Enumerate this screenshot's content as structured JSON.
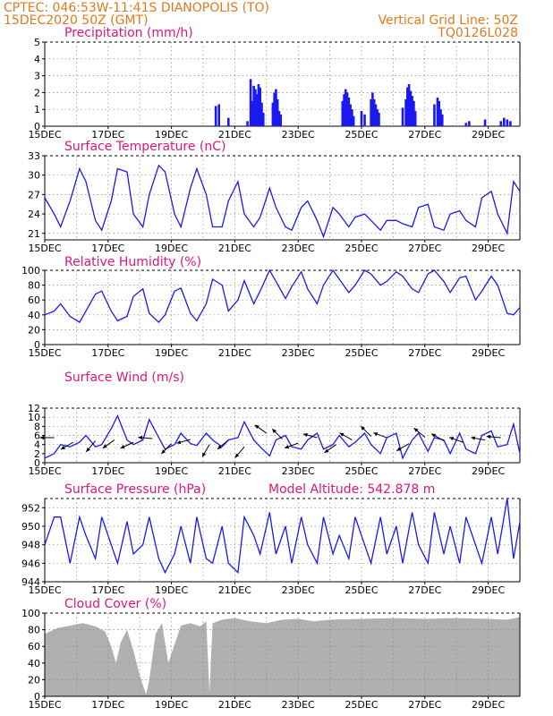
{
  "header": {
    "station": "CPTEC:   046:53W-11:41S   DIANOPOLIS (TO)",
    "run_time": "15DEC2020 50Z (GMT)",
    "grid_note": "Vertical Grid Line: 50Z",
    "code": "TQ0126L028"
  },
  "colors": {
    "series": "#1a1af0",
    "title": "#e0157d",
    "header": "#e07a1c",
    "cloud": "#b0b0b0"
  },
  "chart_data": [
    {
      "id": "precip",
      "type": "bar",
      "title": "Precipitation  (mm/h)",
      "x_domain": [
        15,
        30
      ],
      "ylim": [
        0,
        5
      ],
      "yticks": [
        0,
        1,
        2,
        3,
        4,
        5
      ],
      "xtick_labels": [
        "15DEC",
        "17DEC",
        "19DEC",
        "21DEC",
        "23DEC",
        "25DEC",
        "27DEC",
        "29DEC"
      ],
      "bars": [
        [
          20.4,
          1.2
        ],
        [
          20.5,
          1.3
        ],
        [
          20.8,
          0.5
        ],
        [
          21.4,
          0.3
        ],
        [
          21.5,
          2.8
        ],
        [
          21.55,
          1.5
        ],
        [
          21.6,
          2.4
        ],
        [
          21.65,
          2.2
        ],
        [
          21.7,
          1.9
        ],
        [
          21.75,
          2.5
        ],
        [
          21.8,
          2.3
        ],
        [
          21.85,
          1.4
        ],
        [
          21.9,
          0.8
        ],
        [
          22.2,
          1.4
        ],
        [
          22.25,
          2.0
        ],
        [
          22.3,
          2.2
        ],
        [
          22.35,
          1.6
        ],
        [
          22.4,
          0.9
        ],
        [
          22.45,
          0.7
        ],
        [
          24.4,
          1.5
        ],
        [
          24.45,
          1.9
        ],
        [
          24.5,
          2.2
        ],
        [
          24.55,
          2.0
        ],
        [
          24.6,
          1.7
        ],
        [
          24.65,
          1.3
        ],
        [
          24.7,
          1.0
        ],
        [
          24.75,
          0.6
        ],
        [
          25.0,
          0.9
        ],
        [
          25.1,
          0.7
        ],
        [
          25.3,
          1.6
        ],
        [
          25.35,
          2.0
        ],
        [
          25.4,
          1.6
        ],
        [
          25.45,
          1.3
        ],
        [
          25.5,
          1.0
        ],
        [
          25.55,
          0.8
        ],
        [
          26.3,
          1.1
        ],
        [
          26.4,
          1.6
        ],
        [
          26.45,
          2.3
        ],
        [
          26.5,
          2.5
        ],
        [
          26.55,
          2.1
        ],
        [
          26.6,
          1.8
        ],
        [
          26.65,
          1.5
        ],
        [
          26.7,
          0.9
        ],
        [
          27.3,
          1.3
        ],
        [
          27.4,
          1.7
        ],
        [
          27.45,
          1.5
        ],
        [
          27.5,
          1.0
        ],
        [
          27.55,
          0.7
        ],
        [
          28.3,
          0.2
        ],
        [
          28.4,
          0.3
        ],
        [
          28.9,
          0.4
        ],
        [
          29.4,
          0.3
        ],
        [
          29.5,
          0.5
        ],
        [
          29.6,
          0.4
        ],
        [
          29.7,
          0.3
        ]
      ]
    },
    {
      "id": "temp",
      "type": "line",
      "title": "Surface Temperature (nC)",
      "x_domain": [
        15,
        30
      ],
      "ylim": [
        20,
        33
      ],
      "yticks": [
        21,
        24,
        27,
        30,
        33
      ],
      "xtick_labels": [
        "15DEC",
        "17DEC",
        "19DEC",
        "21DEC",
        "23DEC",
        "25DEC",
        "27DEC",
        "29DEC"
      ],
      "x": [
        15.0,
        15.3,
        15.5,
        15.8,
        16.1,
        16.3,
        16.6,
        16.8,
        17.1,
        17.3,
        17.6,
        17.8,
        18.1,
        18.3,
        18.6,
        18.8,
        19.1,
        19.3,
        19.6,
        19.8,
        20.1,
        20.3,
        20.6,
        20.8,
        21.1,
        21.3,
        21.6,
        21.8,
        22.1,
        22.3,
        22.6,
        22.8,
        23.1,
        23.3,
        23.6,
        23.8,
        24.1,
        24.3,
        24.6,
        24.8,
        25.1,
        25.3,
        25.6,
        25.8,
        26.1,
        26.3,
        26.6,
        26.8,
        27.1,
        27.3,
        27.6,
        27.8,
        28.1,
        28.3,
        28.6,
        28.8,
        29.1,
        29.3,
        29.6,
        29.8,
        30.0
      ],
      "y": [
        26.5,
        24,
        22,
        26,
        31,
        29,
        23,
        21.5,
        26,
        31,
        30.5,
        24,
        22,
        27,
        31.5,
        30.5,
        24,
        22,
        28,
        31,
        27,
        22,
        22,
        26,
        29,
        24,
        22,
        23.5,
        28,
        25,
        22,
        21.5,
        25,
        26,
        23,
        20.5,
        25,
        24,
        22,
        23.5,
        24,
        23,
        21.5,
        23,
        23,
        22.5,
        22,
        25,
        25.5,
        22,
        21.5,
        24,
        24.5,
        23,
        22,
        26.5,
        27.5,
        24,
        21,
        29,
        27.5
      ]
    },
    {
      "id": "rh",
      "type": "line",
      "title": "Relative Humidity (%)",
      "x_domain": [
        15,
        30
      ],
      "ylim": [
        0,
        100
      ],
      "yticks": [
        0,
        20,
        40,
        60,
        80,
        100
      ],
      "xtick_labels": [
        "15DEC",
        "17DEC",
        "19DEC",
        "21DEC",
        "23DEC",
        "25DEC",
        "27DEC",
        "29DEC"
      ],
      "x": [
        15.0,
        15.3,
        15.5,
        15.8,
        16.1,
        16.3,
        16.6,
        16.8,
        17.1,
        17.3,
        17.6,
        17.8,
        18.1,
        18.3,
        18.6,
        18.8,
        19.1,
        19.3,
        19.6,
        19.8,
        20.1,
        20.3,
        20.6,
        20.8,
        21.1,
        21.3,
        21.6,
        21.8,
        22.1,
        22.3,
        22.6,
        22.8,
        23.1,
        23.3,
        23.6,
        23.8,
        24.1,
        24.3,
        24.6,
        24.8,
        25.1,
        25.3,
        25.6,
        25.8,
        26.1,
        26.3,
        26.6,
        26.8,
        27.1,
        27.3,
        27.6,
        27.8,
        28.1,
        28.3,
        28.6,
        28.8,
        29.1,
        29.3,
        29.6,
        29.8,
        30.0
      ],
      "y": [
        40,
        45,
        55,
        38,
        30,
        45,
        68,
        72,
        45,
        32,
        38,
        65,
        75,
        42,
        30,
        40,
        72,
        76,
        42,
        32,
        55,
        88,
        80,
        45,
        60,
        86,
        55,
        72,
        100,
        85,
        62,
        78,
        98,
        75,
        55,
        80,
        100,
        88,
        70,
        80,
        100,
        95,
        80,
        85,
        98,
        92,
        75,
        70,
        95,
        100,
        85,
        70,
        90,
        92,
        60,
        72,
        92,
        80,
        42,
        40,
        50
      ]
    },
    {
      "id": "wind",
      "type": "line",
      "title": "Surface Wind  (m/s)",
      "x_domain": [
        15,
        30
      ],
      "ylim": [
        0,
        12
      ],
      "yticks": [
        0,
        2,
        4,
        6,
        8,
        10,
        12
      ],
      "xtick_labels": [
        "15DEC",
        "17DEC",
        "19DEC",
        "21DEC",
        "23DEC",
        "25DEC",
        "27DEC",
        "29DEC"
      ],
      "x": [
        15.0,
        15.3,
        15.5,
        15.8,
        16.1,
        16.3,
        16.6,
        16.8,
        17.1,
        17.3,
        17.6,
        17.8,
        18.1,
        18.3,
        18.6,
        18.8,
        19.1,
        19.3,
        19.6,
        19.8,
        20.1,
        20.3,
        20.6,
        20.8,
        21.1,
        21.3,
        21.6,
        21.8,
        22.1,
        22.3,
        22.6,
        22.8,
        23.1,
        23.3,
        23.6,
        23.8,
        24.1,
        24.3,
        24.6,
        24.8,
        25.1,
        25.3,
        25.6,
        25.8,
        26.1,
        26.3,
        26.6,
        26.8,
        27.1,
        27.3,
        27.6,
        27.8,
        28.1,
        28.3,
        28.6,
        28.8,
        29.1,
        29.3,
        29.6,
        29.8,
        30.0
      ],
      "y": [
        1,
        2,
        4,
        3.5,
        4.5,
        6,
        3.5,
        4,
        7.5,
        10.3,
        5,
        4,
        5,
        9.5,
        5.5,
        3,
        4,
        6.5,
        4.2,
        3.8,
        6.5,
        5,
        3.5,
        5,
        5.5,
        9,
        5,
        3.5,
        1.5,
        5,
        6,
        3.5,
        3,
        5,
        6.5,
        3,
        4,
        6,
        3.5,
        4.5,
        6.5,
        4,
        2,
        5.5,
        6.5,
        1,
        5,
        6.5,
        2.5,
        5.5,
        5,
        2,
        6.5,
        3,
        2,
        6,
        7,
        3.5,
        4,
        8.5,
        2
      ],
      "vectors": [
        [
          15.3,
          5.5,
          180
        ],
        [
          15.9,
          4.5,
          210
        ],
        [
          16.6,
          4.8,
          230
        ],
        [
          17.2,
          5.0,
          215
        ],
        [
          17.8,
          4.5,
          205
        ],
        [
          18.4,
          5.3,
          175
        ],
        [
          19.0,
          4.2,
          225
        ],
        [
          19.6,
          5.1,
          195
        ],
        [
          20.2,
          4.0,
          240
        ],
        [
          20.8,
          5.0,
          220
        ],
        [
          21.3,
          3.5,
          230
        ],
        [
          22.0,
          6.5,
          145
        ],
        [
          22.5,
          5.2,
          135
        ],
        [
          23.0,
          4.3,
          200
        ],
        [
          23.6,
          5.5,
          165
        ],
        [
          24.2,
          4.0,
          215
        ],
        [
          24.7,
          5.0,
          150
        ],
        [
          25.3,
          5.8,
          135
        ],
        [
          25.8,
          5.5,
          160
        ],
        [
          26.5,
          4.2,
          210
        ],
        [
          27.0,
          5.6,
          140
        ],
        [
          27.6,
          4.8,
          150
        ],
        [
          28.2,
          4.5,
          160
        ],
        [
          28.9,
          5.0,
          170
        ],
        [
          29.4,
          5.5,
          175
        ]
      ]
    },
    {
      "id": "pres",
      "type": "line",
      "title": "Surface Pressure (hPa)",
      "model_altitude": "Model Altitude: 542.878  m",
      "x_domain": [
        15,
        30
      ],
      "ylim": [
        944,
        953
      ],
      "yticks": [
        944,
        946,
        948,
        950,
        952
      ],
      "xtick_labels": [
        "15DEC",
        "17DEC",
        "19DEC",
        "21DEC",
        "23DEC",
        "25DEC",
        "27DEC",
        "29DEC"
      ],
      "x": [
        15.0,
        15.3,
        15.5,
        15.8,
        16.1,
        16.3,
        16.6,
        16.8,
        17.1,
        17.3,
        17.6,
        17.8,
        18.1,
        18.3,
        18.6,
        18.8,
        19.1,
        19.3,
        19.6,
        19.8,
        20.1,
        20.3,
        20.6,
        20.8,
        21.1,
        21.3,
        21.6,
        21.8,
        22.1,
        22.3,
        22.6,
        22.8,
        23.1,
        23.3,
        23.6,
        23.8,
        24.1,
        24.3,
        24.6,
        24.8,
        25.1,
        25.3,
        25.6,
        25.8,
        26.1,
        26.3,
        26.6,
        26.8,
        27.1,
        27.3,
        27.6,
        27.8,
        28.1,
        28.3,
        28.6,
        28.8,
        29.1,
        29.3,
        29.6,
        29.8,
        30.0
      ],
      "y": [
        948,
        951,
        951,
        946,
        951,
        949,
        946.5,
        951,
        948,
        946,
        950.5,
        947,
        948,
        951,
        946.5,
        945,
        947,
        950,
        946,
        951,
        946.5,
        946,
        950,
        946,
        945,
        951,
        949,
        947,
        951.5,
        947,
        950,
        946,
        951,
        948,
        946,
        951,
        947,
        949,
        946.5,
        951,
        948,
        946,
        951,
        947,
        950,
        946,
        951.5,
        948,
        946,
        951.5,
        947,
        950,
        946,
        951,
        948,
        946,
        951,
        947,
        953,
        946.5,
        950.5
      ]
    },
    {
      "id": "cloud",
      "type": "bar",
      "title": "Cloud Cover (%)",
      "x_domain": [
        15,
        30
      ],
      "ylim": [
        0,
        100
      ],
      "yticks": [
        0,
        20,
        40,
        60,
        80,
        100
      ],
      "xtick_labels": [
        "15DEC",
        "17DEC",
        "19DEC",
        "21DEC",
        "23DEC",
        "25DEC",
        "27DEC",
        "29DEC"
      ],
      "x": [
        15.0,
        15.4,
        15.8,
        16.2,
        16.6,
        16.9,
        17.1,
        17.25,
        17.4,
        17.6,
        17.8,
        18.0,
        18.2,
        18.3,
        18.5,
        18.7,
        18.9,
        19.1,
        19.3,
        19.6,
        19.9,
        20.1,
        20.2,
        20.3,
        20.6,
        21.0,
        21.5,
        22.0,
        22.5,
        23.0,
        23.5,
        24.0,
        25.0,
        26.0,
        27.0,
        28.0,
        29.0,
        29.6,
        30.0
      ],
      "y": [
        75,
        82,
        85,
        88,
        84,
        78,
        60,
        40,
        65,
        80,
        55,
        25,
        2,
        20,
        75,
        88,
        40,
        62,
        85,
        88,
        84,
        90,
        5,
        88,
        92,
        94,
        90,
        88,
        92,
        93,
        90,
        92,
        93,
        94,
        93,
        94,
        93,
        92,
        95
      ]
    }
  ]
}
